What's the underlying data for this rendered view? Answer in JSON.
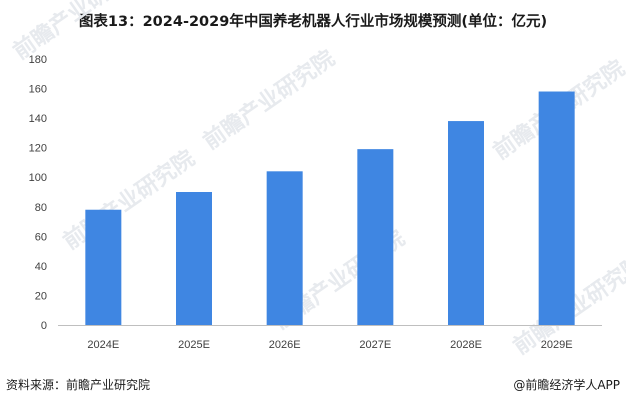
{
  "title": "图表13：2024-2029年中国养老机器人行业市场规模预测(单位：亿元)",
  "source_label": "资料来源：前瞻产业研究院",
  "brand_label": "@前瞻经济学人APP",
  "watermark": "前瞻产业研究院",
  "colors": {
    "bar": "#3f86e2",
    "axis": "#bfbfbf"
  },
  "chart_data": {
    "type": "bar",
    "title": "图表13：2024-2029年中国养老机器人行业市场规模预测(单位：亿元)",
    "xlabel": "",
    "ylabel": "",
    "categories": [
      "2024E",
      "2025E",
      "2026E",
      "2027E",
      "2028E",
      "2029E"
    ],
    "values": [
      78,
      90,
      104,
      119,
      138,
      158
    ],
    "ylim": [
      0,
      180
    ],
    "yticks": [
      0,
      20,
      40,
      60,
      80,
      100,
      120,
      140,
      160,
      180
    ],
    "grid": false,
    "legend": "none"
  }
}
